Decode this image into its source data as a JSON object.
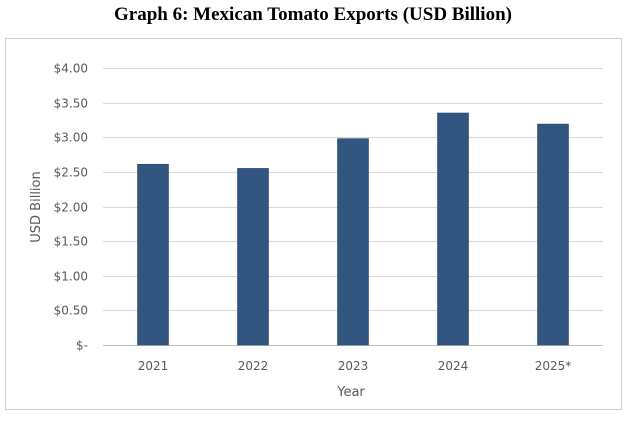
{
  "chart_data": {
    "type": "bar",
    "title": "Graph 6: Mexican Tomato Exports (USD Billion)",
    "xlabel": "Year",
    "ylabel": "USD Billion",
    "categories": [
      "2021",
      "2022",
      "2023",
      "2024",
      "2025*"
    ],
    "values": [
      2.61,
      2.55,
      2.98,
      3.35,
      3.19
    ],
    "ylim": [
      0,
      4
    ],
    "yticks": [
      0,
      0.5,
      1,
      1.5,
      2,
      2.5,
      3,
      3.5,
      4
    ],
    "ytick_labels": [
      "$-",
      "$0.50",
      "$1.00",
      "$1.50",
      "$2.00",
      "$2.50",
      "$3.00",
      "$3.50",
      "$4.00"
    ],
    "grid": true,
    "bar_color": "#335680"
  }
}
